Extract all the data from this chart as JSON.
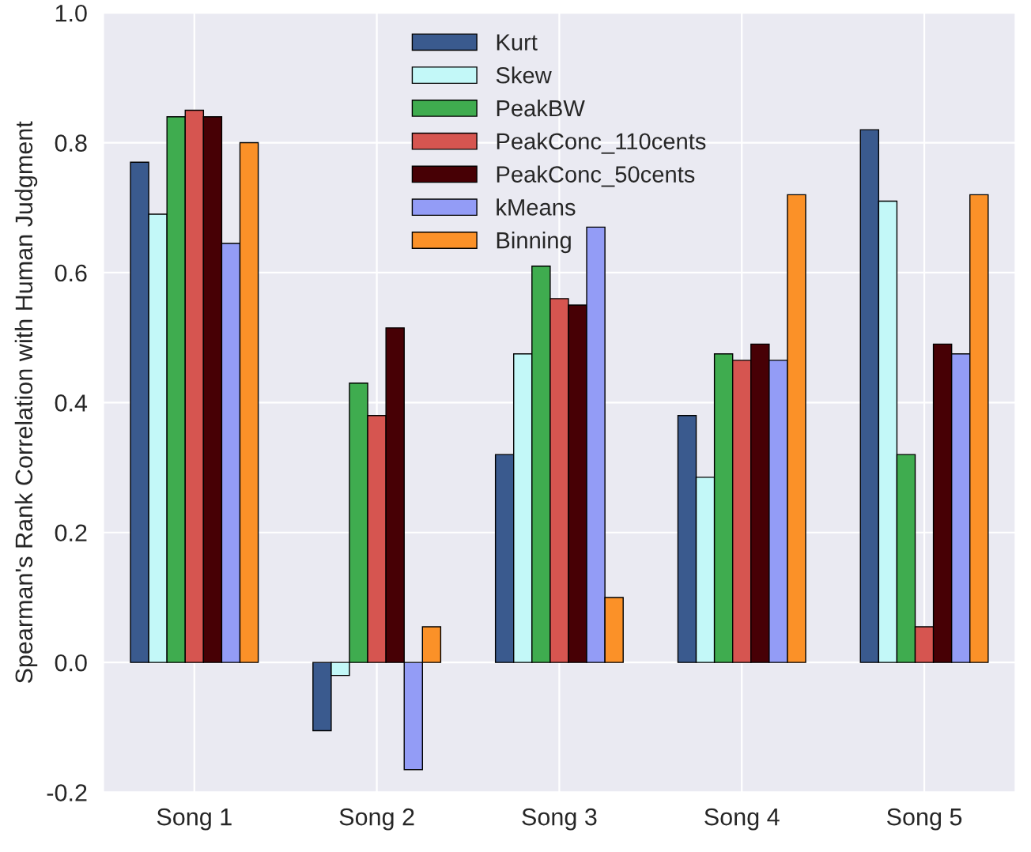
{
  "chart_data": {
    "type": "bar",
    "ylabel": "Spearman's Rank Correlation with Human Judgment",
    "categories": [
      "Song 1",
      "Song 2",
      "Song 3",
      "Song 4",
      "Song 5"
    ],
    "series": [
      {
        "name": "Kurt",
        "color": "#3a5a8e",
        "values": [
          0.77,
          -0.105,
          0.32,
          0.38,
          0.82
        ]
      },
      {
        "name": "Skew",
        "color": "#c3f8f8",
        "values": [
          0.69,
          -0.02,
          0.475,
          0.285,
          0.71
        ]
      },
      {
        "name": "PeakBW",
        "color": "#3fac4f",
        "values": [
          0.84,
          0.43,
          0.61,
          0.475,
          0.32
        ]
      },
      {
        "name": "PeakConc_110cents",
        "color": "#d65550",
        "values": [
          0.85,
          0.38,
          0.56,
          0.465,
          0.055
        ]
      },
      {
        "name": "PeakConc_50cents",
        "color": "#470005",
        "values": [
          0.84,
          0.515,
          0.55,
          0.49,
          0.49
        ]
      },
      {
        "name": "kMeans",
        "color": "#939cf6",
        "values": [
          0.645,
          -0.165,
          0.67,
          0.465,
          0.475
        ]
      },
      {
        "name": "Binning",
        "color": "#fb9128",
        "values": [
          0.8,
          0.055,
          0.1,
          0.72,
          0.72
        ]
      }
    ],
    "ylim": [
      -0.2,
      1.0
    ],
    "yticks": [
      {
        "value": -0.2,
        "label": "-0.2"
      },
      {
        "value": 0,
        "label": "0.0"
      },
      {
        "value": 0.2,
        "label": "0.2"
      },
      {
        "value": 0.4,
        "label": "0.4"
      },
      {
        "value": 0.6,
        "label": "0.6"
      },
      {
        "value": 0.8,
        "label": "0.8"
      },
      {
        "value": 1,
        "label": "1.0"
      }
    ],
    "grid": true,
    "legend": "top"
  }
}
